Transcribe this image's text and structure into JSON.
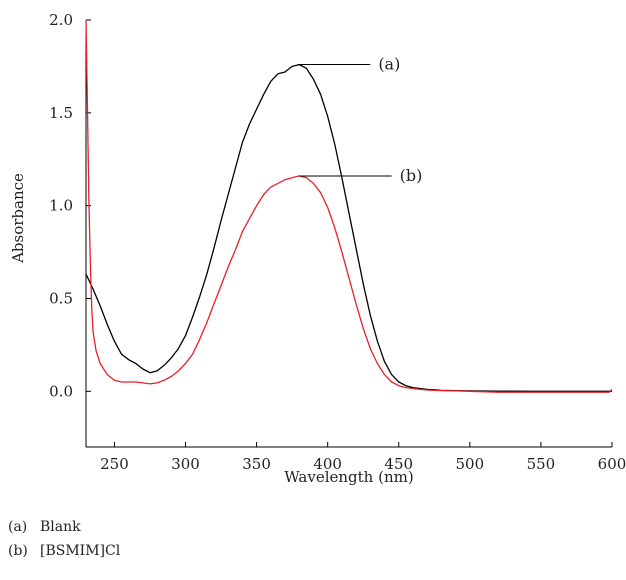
{
  "chart_data": {
    "type": "line",
    "xlabel": "Wavelength (nm)",
    "ylabel": "Absorbance",
    "xlim": [
      230,
      600
    ],
    "ylim": [
      -0.3,
      2.0
    ],
    "xticks": [
      250,
      300,
      350,
      400,
      450,
      500,
      550,
      600
    ],
    "yticks": [
      0.0,
      0.5,
      1.0,
      1.5,
      2.0
    ],
    "ytick_labels": [
      "0.0",
      "0.5",
      "1.0",
      "1.5",
      "2.0"
    ],
    "grid": false,
    "series": [
      {
        "name": "(a)",
        "color": "#000000",
        "x": [
          230,
          232,
          235,
          240,
          245,
          250,
          255,
          260,
          265,
          270,
          275,
          280,
          285,
          290,
          295,
          300,
          305,
          310,
          315,
          320,
          325,
          330,
          335,
          340,
          345,
          350,
          355,
          360,
          365,
          370,
          375,
          380,
          385,
          390,
          395,
          400,
          405,
          410,
          415,
          420,
          425,
          430,
          435,
          440,
          445,
          450,
          455,
          460,
          465,
          470,
          475,
          480,
          490,
          500,
          520,
          550,
          580,
          600
        ],
        "y": [
          0.63,
          0.6,
          0.55,
          0.46,
          0.36,
          0.27,
          0.2,
          0.17,
          0.15,
          0.12,
          0.1,
          0.11,
          0.14,
          0.18,
          0.23,
          0.3,
          0.4,
          0.51,
          0.63,
          0.77,
          0.92,
          1.06,
          1.2,
          1.34,
          1.44,
          1.52,
          1.6,
          1.67,
          1.71,
          1.72,
          1.75,
          1.76,
          1.74,
          1.68,
          1.6,
          1.48,
          1.33,
          1.15,
          0.96,
          0.77,
          0.58,
          0.41,
          0.27,
          0.16,
          0.09,
          0.05,
          0.03,
          0.02,
          0.015,
          0.01,
          0.008,
          0.005,
          0.003,
          0.002,
          0.001,
          0.0,
          0.0,
          0.0
        ]
      },
      {
        "name": "(b)",
        "color": "#e8202a",
        "x": [
          230,
          231,
          232,
          233,
          234,
          235,
          237,
          240,
          245,
          250,
          255,
          260,
          265,
          270,
          275,
          280,
          285,
          290,
          295,
          300,
          305,
          310,
          315,
          320,
          325,
          330,
          335,
          340,
          345,
          350,
          355,
          360,
          365,
          370,
          375,
          380,
          385,
          390,
          395,
          400,
          405,
          410,
          415,
          420,
          425,
          430,
          435,
          440,
          445,
          450,
          455,
          460,
          465,
          470,
          475,
          480,
          490,
          500,
          520,
          550,
          580,
          598,
          600
        ],
        "y": [
          2.0,
          1.55,
          1.05,
          0.7,
          0.45,
          0.32,
          0.22,
          0.15,
          0.09,
          0.06,
          0.05,
          0.05,
          0.05,
          0.045,
          0.04,
          0.045,
          0.06,
          0.08,
          0.11,
          0.15,
          0.2,
          0.28,
          0.37,
          0.47,
          0.57,
          0.67,
          0.76,
          0.86,
          0.93,
          1.0,
          1.06,
          1.1,
          1.12,
          1.14,
          1.15,
          1.16,
          1.15,
          1.12,
          1.07,
          0.99,
          0.88,
          0.75,
          0.61,
          0.47,
          0.34,
          0.23,
          0.15,
          0.09,
          0.05,
          0.03,
          0.02,
          0.015,
          0.01,
          0.007,
          0.005,
          0.004,
          0.002,
          0.0,
          -0.005,
          -0.005,
          -0.005,
          -0.005,
          0.01
        ]
      }
    ],
    "annotations": [
      {
        "label": "(a)",
        "series": 0,
        "at_x": 379,
        "at_y": 1.76,
        "label_x": 430
      },
      {
        "label": "(b)",
        "series": 1,
        "at_x": 380,
        "at_y": 1.16,
        "label_x": 445
      }
    ]
  },
  "caption": {
    "items": [
      {
        "tag": "(a)",
        "text": "Blank"
      },
      {
        "tag": "(b)",
        "text": "[BSMIM]Cl"
      }
    ]
  }
}
